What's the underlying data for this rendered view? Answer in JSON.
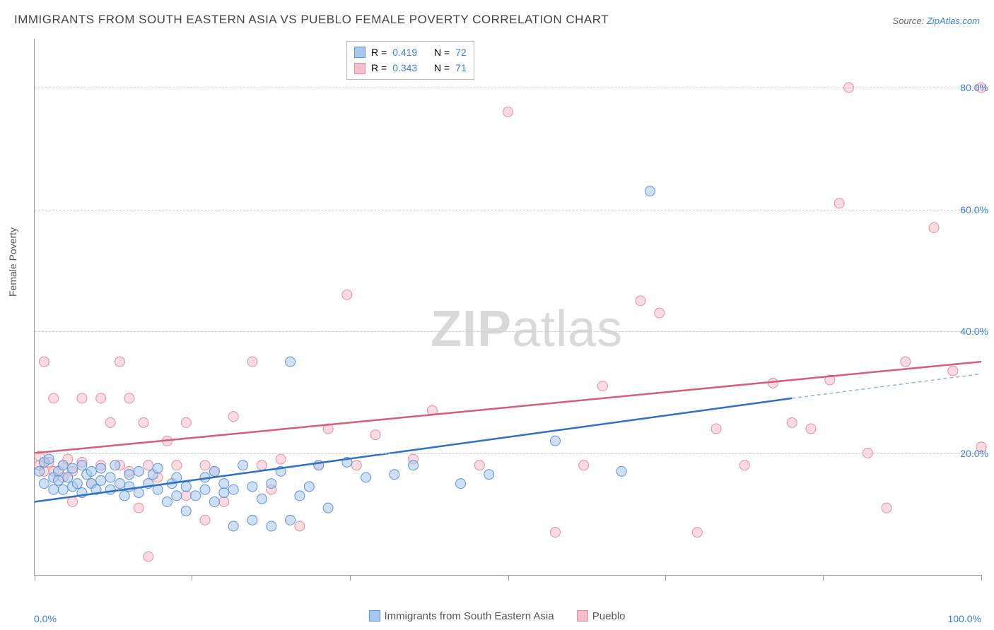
{
  "title": "IMMIGRANTS FROM SOUTH EASTERN ASIA VS PUEBLO FEMALE POVERTY CORRELATION CHART",
  "source_label": "Source:",
  "source_name": "ZipAtlas.com",
  "ylabel": "Female Poverty",
  "watermark": {
    "bold": "ZIP",
    "light": "atlas"
  },
  "chart": {
    "type": "scatter",
    "xlim": [
      0,
      100
    ],
    "ylim": [
      0,
      88
    ],
    "x_tick_positions": [
      0,
      16.6,
      33.3,
      50,
      66.6,
      83.3,
      100
    ],
    "x_tick_labels_shown": {
      "left": "0.0%",
      "right": "100.0%"
    },
    "y_gridlines": [
      20,
      40,
      60,
      80
    ],
    "y_tick_labels": [
      "20.0%",
      "40.0%",
      "60.0%",
      "80.0%"
    ],
    "background_color": "#ffffff",
    "grid_color": "#cccccc",
    "axis_color": "#999999",
    "marker_radius": 7,
    "marker_opacity": 0.55,
    "series": [
      {
        "name": "Immigrants from South Eastern Asia",
        "color_fill": "#a7c7ed",
        "color_stroke": "#5a93d6",
        "r_value": "0.419",
        "n_value": "72",
        "trend": {
          "x1": 0,
          "y1": 12,
          "x2": 80,
          "y2": 29,
          "color": "#2e6fc7",
          "width": 2.5,
          "extrap": {
            "x1": 80,
            "y1": 29,
            "x2": 100,
            "y2": 33,
            "dash": "5,4",
            "color": "#8fb4e0"
          }
        },
        "points": [
          [
            0.5,
            17
          ],
          [
            1,
            18.5
          ],
          [
            1,
            15
          ],
          [
            1.5,
            19
          ],
          [
            2,
            16
          ],
          [
            2,
            14
          ],
          [
            2.5,
            17
          ],
          [
            2.5,
            15.5
          ],
          [
            3,
            18
          ],
          [
            3,
            14
          ],
          [
            3.5,
            16
          ],
          [
            4,
            17.5
          ],
          [
            4,
            14.5
          ],
          [
            4.5,
            15
          ],
          [
            5,
            18
          ],
          [
            5,
            13.5
          ],
          [
            5.5,
            16.5
          ],
          [
            6,
            15
          ],
          [
            6,
            17
          ],
          [
            6.5,
            14
          ],
          [
            7,
            15.5
          ],
          [
            7,
            17.5
          ],
          [
            8,
            14
          ],
          [
            8,
            16
          ],
          [
            8.5,
            18
          ],
          [
            9,
            15
          ],
          [
            9.5,
            13
          ],
          [
            10,
            16.5
          ],
          [
            10,
            14.5
          ],
          [
            11,
            17
          ],
          [
            11,
            13.5
          ],
          [
            12,
            15
          ],
          [
            12.5,
            16.5
          ],
          [
            13,
            14
          ],
          [
            13,
            17.5
          ],
          [
            14,
            12
          ],
          [
            14.5,
            15
          ],
          [
            15,
            13
          ],
          [
            15,
            16
          ],
          [
            16,
            14.5
          ],
          [
            16,
            10.5
          ],
          [
            17,
            13
          ],
          [
            18,
            14
          ],
          [
            18,
            16
          ],
          [
            19,
            12
          ],
          [
            19,
            17
          ],
          [
            20,
            13.5
          ],
          [
            20,
            15
          ],
          [
            21,
            8
          ],
          [
            21,
            14
          ],
          [
            22,
            18
          ],
          [
            23,
            9
          ],
          [
            23,
            14.5
          ],
          [
            24,
            12.5
          ],
          [
            25,
            8
          ],
          [
            25,
            15
          ],
          [
            26,
            17
          ],
          [
            27,
            9
          ],
          [
            27,
            35
          ],
          [
            28,
            13
          ],
          [
            29,
            14.5
          ],
          [
            30,
            18
          ],
          [
            31,
            11
          ],
          [
            33,
            18.5
          ],
          [
            35,
            16
          ],
          [
            38,
            16.5
          ],
          [
            40,
            18
          ],
          [
            45,
            15
          ],
          [
            48,
            16.5
          ],
          [
            55,
            22
          ],
          [
            62,
            17
          ],
          [
            65,
            63
          ]
        ]
      },
      {
        "name": "Pueblo",
        "color_fill": "#f3c0cb",
        "color_stroke": "#e48aa0",
        "r_value": "0.343",
        "n_value": "71",
        "trend": {
          "x1": 0,
          "y1": 20,
          "x2": 100,
          "y2": 35,
          "color": "#d75c7a",
          "width": 2.5
        },
        "points": [
          [
            0.5,
            18
          ],
          [
            0.5,
            19.5
          ],
          [
            1,
            17
          ],
          [
            1,
            35
          ],
          [
            1.5,
            18.5
          ],
          [
            2,
            17
          ],
          [
            2,
            29
          ],
          [
            3,
            18
          ],
          [
            3,
            16
          ],
          [
            3.5,
            19
          ],
          [
            4,
            17
          ],
          [
            4,
            12
          ],
          [
            5,
            18.5
          ],
          [
            5,
            29
          ],
          [
            6,
            15
          ],
          [
            7,
            29
          ],
          [
            7,
            18
          ],
          [
            8,
            25
          ],
          [
            9,
            35
          ],
          [
            9,
            18
          ],
          [
            10,
            17
          ],
          [
            10,
            29
          ],
          [
            11,
            11
          ],
          [
            11.5,
            25
          ],
          [
            12,
            3
          ],
          [
            12,
            18
          ],
          [
            13,
            16
          ],
          [
            14,
            22
          ],
          [
            15,
            18
          ],
          [
            16,
            13
          ],
          [
            16,
            25
          ],
          [
            18,
            18
          ],
          [
            18,
            9
          ],
          [
            19,
            17
          ],
          [
            20,
            12
          ],
          [
            21,
            26
          ],
          [
            23,
            35
          ],
          [
            24,
            18
          ],
          [
            25,
            14
          ],
          [
            26,
            19
          ],
          [
            28,
            8
          ],
          [
            30,
            18
          ],
          [
            31,
            24
          ],
          [
            33,
            46
          ],
          [
            34,
            18
          ],
          [
            36,
            23
          ],
          [
            40,
            19
          ],
          [
            42,
            27
          ],
          [
            47,
            18
          ],
          [
            50,
            76
          ],
          [
            55,
            7
          ],
          [
            58,
            18
          ],
          [
            60,
            31
          ],
          [
            64,
            45
          ],
          [
            66,
            43
          ],
          [
            70,
            7
          ],
          [
            72,
            24
          ],
          [
            75,
            18
          ],
          [
            78,
            31.5
          ],
          [
            80,
            25
          ],
          [
            82,
            24
          ],
          [
            84,
            32
          ],
          [
            85,
            61
          ],
          [
            86,
            80
          ],
          [
            88,
            20
          ],
          [
            90,
            11
          ],
          [
            92,
            35
          ],
          [
            95,
            57
          ],
          [
            97,
            33.5
          ],
          [
            100,
            80
          ],
          [
            100,
            21
          ]
        ]
      }
    ]
  },
  "legend_stats_label_r": "R  =",
  "legend_stats_label_n": "N  =",
  "bottom_legend": [
    {
      "label": "Immigrants from South Eastern Asia",
      "fill": "#a7c7ed",
      "stroke": "#5a93d6"
    },
    {
      "label": "Pueblo",
      "fill": "#f3c0cb",
      "stroke": "#e48aa0"
    }
  ]
}
